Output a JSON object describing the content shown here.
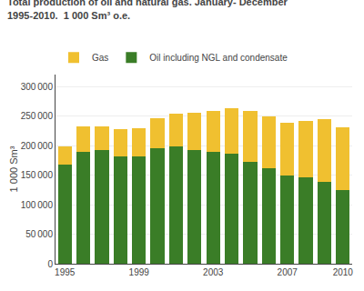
{
  "chart_data": {
    "type": "bar",
    "title": "Total production of oil and natural gas. January- December",
    "subtitle": "1995-2010.  1 000 Sm³ o.e.",
    "ylabel": "1 000 Sm³",
    "categories": [
      "1995",
      null,
      null,
      null,
      "1999",
      null,
      null,
      null,
      "2003",
      null,
      null,
      null,
      "2007",
      null,
      null,
      "2010"
    ],
    "series": [
      {
        "name": "Oil including NGL and condensate",
        "color": "#3a7d27",
        "values": [
          168000,
          190000,
          192000,
          182000,
          182000,
          195000,
          199000,
          193000,
          190000,
          186000,
          172000,
          162000,
          150000,
          146000,
          139000,
          124000
        ]
      },
      {
        "name": "Gas",
        "color": "#f0c030",
        "values": [
          30000,
          43000,
          41000,
          46000,
          48000,
          51000,
          55000,
          63000,
          68000,
          77000,
          86000,
          88000,
          89000,
          96000,
          105000,
          107000
        ]
      }
    ],
    "stacked": true,
    "ylim": [
      0,
      320000
    ],
    "yticks": [
      0,
      {
        "value": 50000,
        "label": "50 000"
      },
      {
        "value": 100000,
        "label": "100 000"
      },
      {
        "value": 150000,
        "label": "150 000"
      },
      {
        "value": 200000,
        "label": "200 000"
      },
      {
        "value": 250000,
        "label": "250 000"
      },
      {
        "value": 300000,
        "label": "300 000"
      }
    ],
    "grid": true,
    "legend": "upper left"
  }
}
